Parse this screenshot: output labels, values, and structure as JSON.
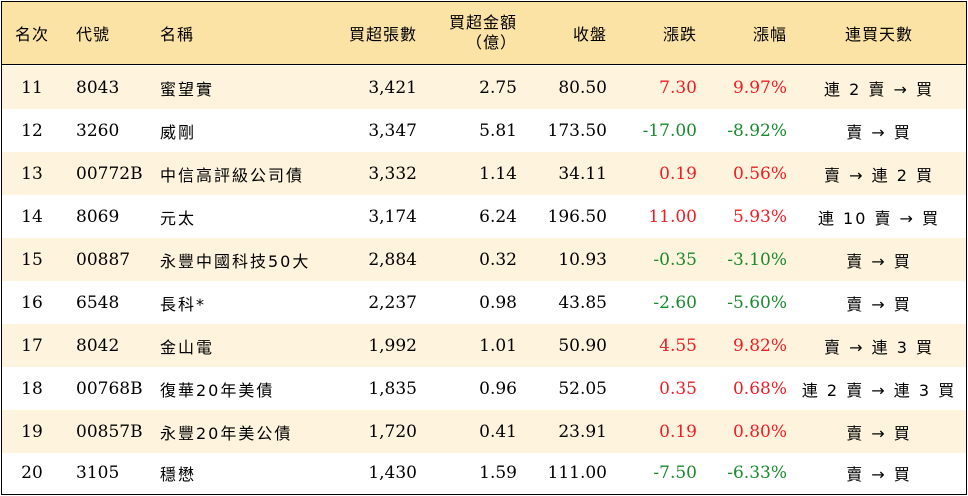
{
  "headers": {
    "rank": "名次",
    "code": "代號",
    "name": "名稱",
    "net_lots": "買超張數",
    "net_amount_line1": "買超金額",
    "net_amount_line2": "（億）",
    "close": "收盤",
    "change": "漲跌",
    "pct": "漲幅",
    "streak": "連買天數"
  },
  "colors": {
    "header_bg": "#fbe3a5",
    "band_bg": "#fef3dc",
    "up": "#ee1c25",
    "down": "#1a8a2e"
  },
  "rows": [
    {
      "rank": "11",
      "code": "8043",
      "name": "蜜望實",
      "net_lots": "3,421",
      "net_amount": "2.75",
      "close": "80.50",
      "change": "7.30",
      "pct": "9.97%",
      "streak": "連 2 賣 → 買",
      "dir": "up"
    },
    {
      "rank": "12",
      "code": "3260",
      "name": "威剛",
      "net_lots": "3,347",
      "net_amount": "5.81",
      "close": "173.50",
      "change": "-17.00",
      "pct": "-8.92%",
      "streak": "賣 → 買",
      "dir": "down"
    },
    {
      "rank": "13",
      "code": "00772B",
      "name": "中信高評級公司債",
      "net_lots": "3,332",
      "net_amount": "1.14",
      "close": "34.11",
      "change": "0.19",
      "pct": "0.56%",
      "streak": "賣 → 連 2 買",
      "dir": "up"
    },
    {
      "rank": "14",
      "code": "8069",
      "name": "元太",
      "net_lots": "3,174",
      "net_amount": "6.24",
      "close": "196.50",
      "change": "11.00",
      "pct": "5.93%",
      "streak": "連 10 賣 → 買",
      "dir": "up"
    },
    {
      "rank": "15",
      "code": "00887",
      "name": "永豐中國科技50大",
      "net_lots": "2,884",
      "net_amount": "0.32",
      "close": "10.93",
      "change": "-0.35",
      "pct": "-3.10%",
      "streak": "賣 → 買",
      "dir": "down"
    },
    {
      "rank": "16",
      "code": "6548",
      "name": "長科*",
      "net_lots": "2,237",
      "net_amount": "0.98",
      "close": "43.85",
      "change": "-2.60",
      "pct": "-5.60%",
      "streak": "賣 → 買",
      "dir": "down"
    },
    {
      "rank": "17",
      "code": "8042",
      "name": "金山電",
      "net_lots": "1,992",
      "net_amount": "1.01",
      "close": "50.90",
      "change": "4.55",
      "pct": "9.82%",
      "streak": "賣 → 連 3 買",
      "dir": "up"
    },
    {
      "rank": "18",
      "code": "00768B",
      "name": "復華20年美債",
      "net_lots": "1,835",
      "net_amount": "0.96",
      "close": "52.05",
      "change": "0.35",
      "pct": "0.68%",
      "streak": "連 2 賣 → 連 3 買",
      "dir": "up"
    },
    {
      "rank": "19",
      "code": "00857B",
      "name": "永豐20年美公債",
      "net_lots": "1,720",
      "net_amount": "0.41",
      "close": "23.91",
      "change": "0.19",
      "pct": "0.80%",
      "streak": "賣 → 買",
      "dir": "up"
    },
    {
      "rank": "20",
      "code": "3105",
      "name": "穩懋",
      "net_lots": "1,430",
      "net_amount": "1.59",
      "close": "111.00",
      "change": "-7.50",
      "pct": "-6.33%",
      "streak": "賣 → 買",
      "dir": "down"
    }
  ]
}
